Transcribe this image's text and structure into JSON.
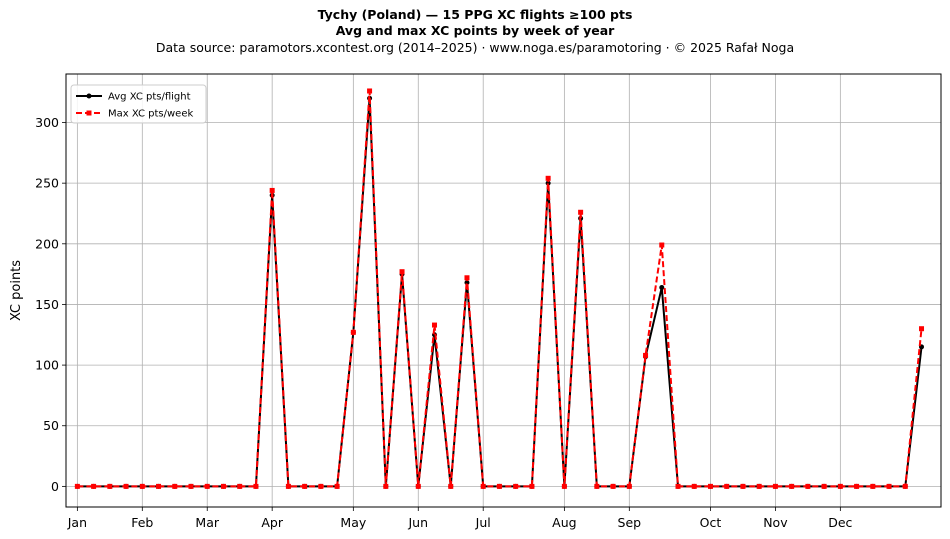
{
  "header": {
    "title": "Tychy (Poland)  —  15 PPG XC flights ≥100 pts",
    "subtitle": "Avg and max XC points by week of year",
    "source": "Data source: paramotors.xcontest.org (2014–2025)  ·  www.noga.es/paramotoring  ·  © 2025 Rafał Noga"
  },
  "chart_data": {
    "type": "line",
    "title": "Tychy (Poland)  —  15 PPG XC flights ≥100 pts",
    "subtitle": "Avg and max XC points by week of year",
    "xlabel": "",
    "ylabel": "XC points",
    "x": [
      1,
      2,
      3,
      4,
      5,
      6,
      7,
      8,
      9,
      10,
      11,
      12,
      13,
      14,
      15,
      16,
      17,
      18,
      19,
      20,
      21,
      22,
      23,
      24,
      25,
      26,
      27,
      28,
      29,
      30,
      31,
      32,
      33,
      34,
      35,
      36,
      37,
      38,
      39,
      40,
      41,
      42,
      43,
      44,
      45,
      46,
      47,
      48,
      49,
      50,
      51,
      52,
      53
    ],
    "x_ticks": [
      {
        "label": "Jan",
        "week": 1
      },
      {
        "label": "Feb",
        "week": 5
      },
      {
        "label": "Mar",
        "week": 9
      },
      {
        "label": "Apr",
        "week": 13
      },
      {
        "label": "May",
        "week": 18
      },
      {
        "label": "Jun",
        "week": 22
      },
      {
        "label": "Jul",
        "week": 26
      },
      {
        "label": "Aug",
        "week": 31
      },
      {
        "label": "Sep",
        "week": 35
      },
      {
        "label": "Oct",
        "week": 40
      },
      {
        "label": "Nov",
        "week": 44
      },
      {
        "label": "Dec",
        "week": 48
      }
    ],
    "xlim": [
      0.3,
      54.2
    ],
    "ylim": [
      -17,
      340
    ],
    "yticks": [
      0,
      50,
      100,
      150,
      200,
      250,
      300
    ],
    "grid": true,
    "legend_position": "top-left",
    "series": [
      {
        "name": "Avg XC pts/flight",
        "color": "#000000",
        "style": "solid",
        "marker": "circle",
        "values": [
          0,
          0,
          0,
          0,
          0,
          0,
          0,
          0,
          0,
          0,
          0,
          0,
          240,
          0,
          0,
          0,
          0,
          127,
          320,
          0,
          175,
          0,
          125,
          0,
          168,
          0,
          0,
          0,
          0,
          250,
          0,
          221,
          0,
          0,
          0,
          107,
          164,
          0,
          0,
          0,
          0,
          0,
          0,
          0,
          0,
          0,
          0,
          0,
          0,
          0,
          0,
          0,
          115
        ]
      },
      {
        "name": "Max XC pts/week",
        "color": "#ff0000",
        "style": "dashed",
        "marker": "square",
        "values": [
          0,
          0,
          0,
          0,
          0,
          0,
          0,
          0,
          0,
          0,
          0,
          0,
          244,
          0,
          0,
          0,
          0,
          127,
          326,
          0,
          177,
          0,
          133,
          0,
          172,
          0,
          0,
          0,
          0,
          254,
          0,
          226,
          0,
          0,
          0,
          108,
          199,
          0,
          0,
          0,
          0,
          0,
          0,
          0,
          0,
          0,
          0,
          0,
          0,
          0,
          0,
          0,
          130
        ]
      }
    ]
  }
}
